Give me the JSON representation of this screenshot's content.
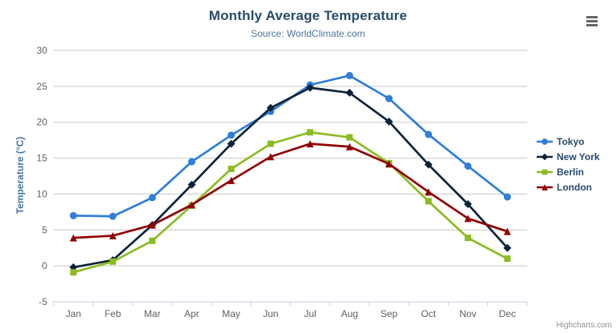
{
  "credits": "Highcharts.com",
  "theme": {
    "title_color": "#274b6d",
    "subtitle_color": "#4d759e",
    "grid_color": "#c8c8c8",
    "axis_line_color": "#c0d0e0",
    "axis_label_color": "#606060",
    "yaxis_title_color": "#4572a7",
    "legend_text_color": "#274b6d",
    "credit_color": "#909090"
  },
  "menu_icon": "hamburger-export-menu-icon",
  "chart_data": {
    "type": "line",
    "title": "Monthly Average Temperature",
    "subtitle": "Source: WorldClimate.com",
    "xlabel": "",
    "ylabel": "Temperature (°C)",
    "ylim": [
      -5,
      30
    ],
    "ytick": 5,
    "grid": true,
    "legend_position": "right",
    "categories": [
      "Jan",
      "Feb",
      "Mar",
      "Apr",
      "May",
      "Jun",
      "Jul",
      "Aug",
      "Sep",
      "Oct",
      "Nov",
      "Dec"
    ],
    "series": [
      {
        "name": "Tokyo",
        "color": "#2f7ed8",
        "marker": "circle",
        "values": [
          7.0,
          6.9,
          9.5,
          14.5,
          18.2,
          21.5,
          25.2,
          26.5,
          23.3,
          18.3,
          13.9,
          9.6
        ]
      },
      {
        "name": "New York",
        "color": "#0d233a",
        "marker": "diamond",
        "values": [
          -0.2,
          0.8,
          5.7,
          11.3,
          17.0,
          22.0,
          24.8,
          24.1,
          20.1,
          14.1,
          8.6,
          2.5
        ]
      },
      {
        "name": "Berlin",
        "color": "#8bbc21",
        "marker": "square",
        "values": [
          -0.9,
          0.6,
          3.5,
          8.4,
          13.5,
          17.0,
          18.6,
          17.9,
          14.3,
          9.0,
          3.9,
          1.0
        ]
      },
      {
        "name": "London",
        "color": "#910000",
        "marker": "triangle",
        "values": [
          3.9,
          4.2,
          5.7,
          8.5,
          11.9,
          15.2,
          17.0,
          16.6,
          14.2,
          10.3,
          6.6,
          4.8
        ]
      }
    ]
  }
}
